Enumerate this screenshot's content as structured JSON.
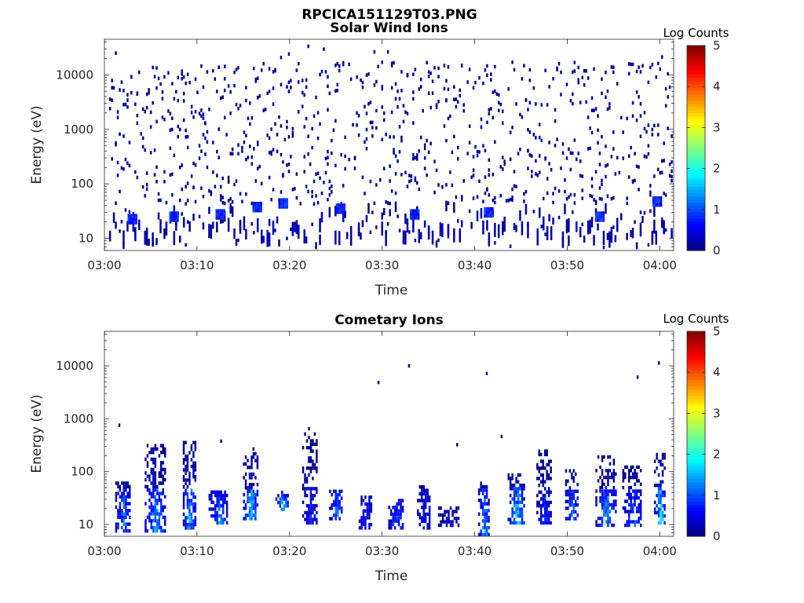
{
  "figure": {
    "title": "RPCICA151129T03.PNG"
  },
  "colorbar": {
    "label": "Log Counts",
    "ticks": [
      0,
      1,
      2,
      3,
      4,
      5
    ],
    "colormap": "jet"
  },
  "chart_data": [
    {
      "type": "heatmap",
      "title": "Solar Wind Ions",
      "xlabel": "Time",
      "ylabel": "Energy (eV)",
      "x_ticks": [
        "03:00",
        "03:10",
        "03:20",
        "03:30",
        "03:40",
        "03:50",
        "04:00"
      ],
      "x_range_minutes": [
        0,
        61.5
      ],
      "y_scale": "log",
      "y_ticks": [
        10,
        100,
        1000,
        10000
      ],
      "y_range": [
        6,
        45000
      ],
      "value_range": [
        0,
        5
      ],
      "grid": false,
      "description_of_values": "Mostly sparse single counts (log counts 0-0.5) scattered from ~10 eV to ~30000 eV; denser patches at 10-40 eV with values up to ~1"
    },
    {
      "type": "heatmap",
      "title": "Cometary Ions",
      "xlabel": "Time",
      "ylabel": "Energy (eV)",
      "x_ticks": [
        "03:00",
        "03:10",
        "03:20",
        "03:30",
        "03:40",
        "03:50",
        "04:00"
      ],
      "x_range_minutes": [
        0,
        61.5
      ],
      "y_scale": "log",
      "y_ticks": [
        10,
        100,
        1000,
        10000
      ],
      "y_range": [
        6,
        45000
      ],
      "value_range": [
        0,
        5
      ],
      "grid": false,
      "bursts": [
        {
          "t": 2.0,
          "emin": 7,
          "emax": 60,
          "peak": 1.5
        },
        {
          "t": 5.5,
          "emin": 7,
          "emax": 330,
          "peak": 1.6
        },
        {
          "t": 9.2,
          "emin": 8,
          "emax": 350,
          "peak": 1.8
        },
        {
          "t": 12.3,
          "emin": 10,
          "emax": 40,
          "peak": 1.5
        },
        {
          "t": 15.8,
          "emin": 12,
          "emax": 220,
          "peak": 2.0
        },
        {
          "t": 19.2,
          "emin": 18,
          "emax": 40,
          "peak": 2.0
        },
        {
          "t": 22.2,
          "emin": 10,
          "emax": 500,
          "peak": 0.8
        },
        {
          "t": 25.0,
          "emin": 12,
          "emax": 45,
          "peak": 1.6
        },
        {
          "t": 28.2,
          "emin": 8,
          "emax": 35,
          "peak": 1.0
        },
        {
          "t": 31.5,
          "emin": 8,
          "emax": 30,
          "peak": 1.4
        },
        {
          "t": 34.5,
          "emin": 8,
          "emax": 50,
          "peak": 0.8
        },
        {
          "t": 37.2,
          "emin": 9,
          "emax": 20,
          "peak": 0.5
        },
        {
          "t": 41.0,
          "emin": 6,
          "emax": 60,
          "peak": 1.8
        },
        {
          "t": 44.5,
          "emin": 10,
          "emax": 90,
          "peak": 2.0
        },
        {
          "t": 47.5,
          "emin": 10,
          "emax": 250,
          "peak": 1.0
        },
        {
          "t": 50.5,
          "emin": 12,
          "emax": 100,
          "peak": 1.4
        },
        {
          "t": 54.2,
          "emin": 9,
          "emax": 200,
          "peak": 1.6
        },
        {
          "t": 57.0,
          "emin": 9,
          "emax": 120,
          "peak": 1.3
        },
        {
          "t": 60.0,
          "emin": 10,
          "emax": 200,
          "peak": 2.0
        }
      ]
    }
  ]
}
